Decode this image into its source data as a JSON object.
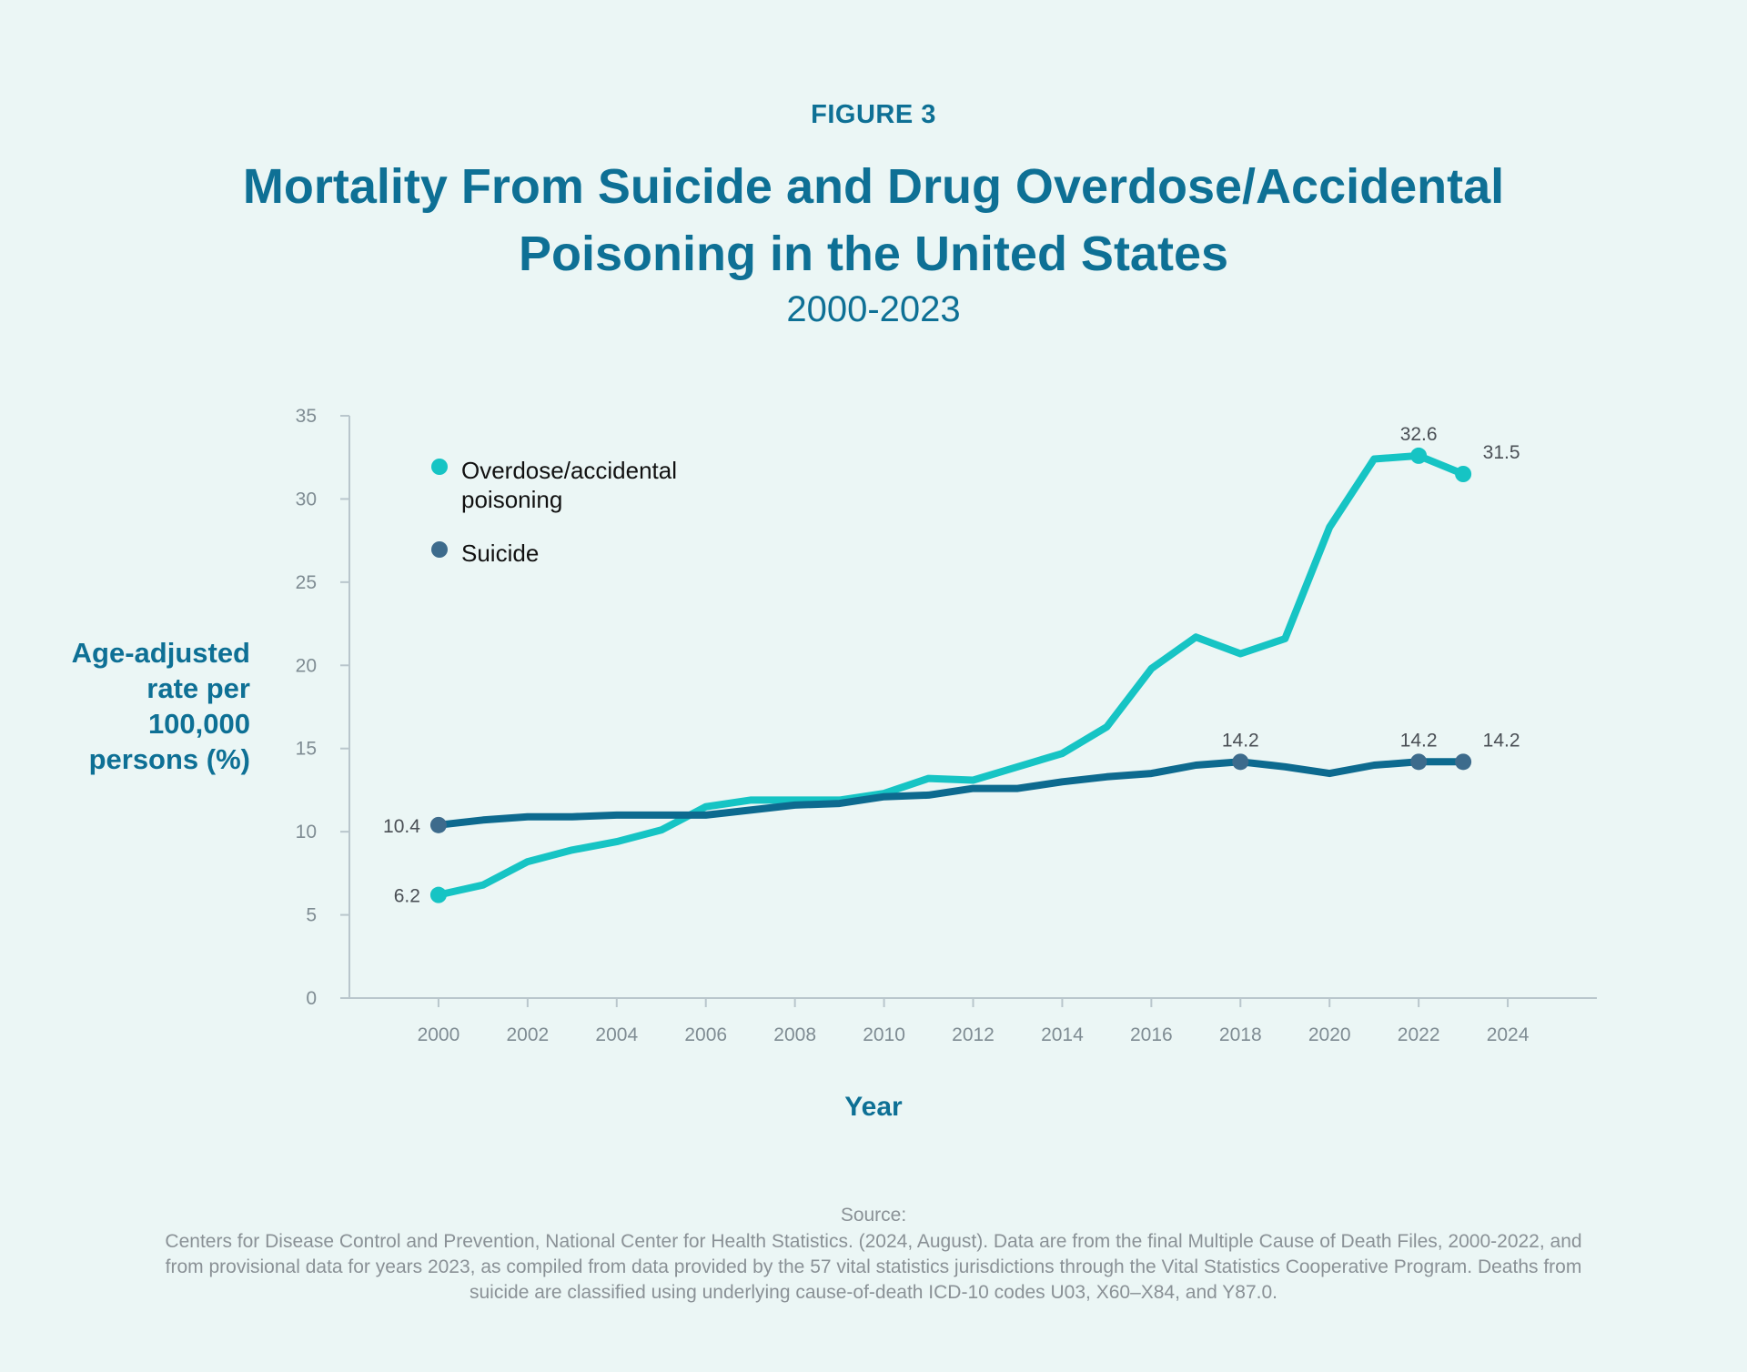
{
  "figure_label": "FIGURE 3",
  "title": "Mortality From Suicide and Drug Overdose/Accidental Poisoning in the United States",
  "subtitle": "2000-2023",
  "colors": {
    "overdose": "#16c4c4",
    "suicide": "#0d6a8f",
    "suicide_marker": "#3d6b8c",
    "title": "#0e7095",
    "axis": "#b9c6cc"
  },
  "chart_data": {
    "type": "line",
    "title": "Mortality From Suicide and Drug Overdose/Accidental Poisoning in the United States",
    "subtitle": "2000-2023",
    "xlabel": "Year",
    "ylabel": "Age-adjusted rate per 100,000 persons (%)",
    "xlim": [
      1998,
      2026
    ],
    "ylim": [
      0,
      35
    ],
    "xticks": [
      2000,
      2002,
      2004,
      2006,
      2008,
      2010,
      2012,
      2014,
      2016,
      2018,
      2020,
      2022,
      2024
    ],
    "yticks": [
      0,
      5,
      10,
      15,
      20,
      25,
      30,
      35
    ],
    "legend_position": "top-left",
    "grid": false,
    "x": [
      2000,
      2001,
      2002,
      2003,
      2004,
      2005,
      2006,
      2007,
      2008,
      2009,
      2010,
      2011,
      2012,
      2013,
      2014,
      2015,
      2016,
      2017,
      2018,
      2019,
      2020,
      2021,
      2022,
      2023
    ],
    "series": [
      {
        "key": "overdose",
        "name": "Overdose/accidental poisoning",
        "values": [
          6.2,
          6.8,
          8.2,
          8.9,
          9.4,
          10.1,
          11.5,
          11.9,
          11.9,
          11.9,
          12.3,
          13.2,
          13.1,
          13.9,
          14.7,
          16.3,
          19.8,
          21.7,
          20.7,
          21.6,
          28.3,
          32.4,
          32.6,
          31.5
        ],
        "labels": [
          {
            "year": 2000,
            "text": "6.2"
          },
          {
            "year": 2022,
            "text": "32.6"
          },
          {
            "year": 2023,
            "text": "31.5"
          }
        ]
      },
      {
        "key": "suicide",
        "name": "Suicide",
        "values": [
          10.4,
          10.7,
          10.9,
          10.9,
          11.0,
          11.0,
          11.0,
          11.3,
          11.6,
          11.7,
          12.1,
          12.2,
          12.6,
          12.6,
          13.0,
          13.3,
          13.5,
          14.0,
          14.2,
          13.9,
          13.5,
          14.0,
          14.2,
          14.2
        ],
        "labels": [
          {
            "year": 2000,
            "text": "10.4"
          },
          {
            "year": 2018,
            "text": "14.2"
          },
          {
            "year": 2022,
            "text": "14.2"
          },
          {
            "year": 2023,
            "text": "14.2"
          }
        ]
      }
    ]
  },
  "legend": {
    "overdose_line1": "Overdose/accidental",
    "overdose_line2": "poisoning",
    "suicide": "Suicide"
  },
  "ylabel_lines": [
    "Age-adjusted",
    "rate per",
    "100,000",
    "persons (%)"
  ],
  "source": {
    "title": "Source:",
    "text": "Centers for Disease Control and Prevention, National Center for Health Statistics. (2024, August). Data are from the final Multiple Cause of Death Files, 2000-2022, and from provisional data for years 2023, as compiled from data provided by the 57 vital statistics jurisdictions through the Vital Statistics Cooperative Program. Deaths from suicide are classified using underlying cause-of-death ICD-10 codes U03, X60–X84, and Y87.0."
  }
}
